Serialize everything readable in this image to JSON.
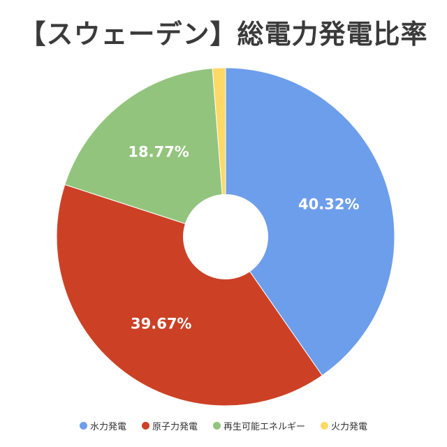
{
  "chart_data": {
    "type": "pie",
    "title": "【スウェーデン】総電力発電比率",
    "donut": true,
    "legend_position": "bottom",
    "slices": [
      {
        "name": "水力発電",
        "value": 40.32,
        "label": "40.32%",
        "color": "#6d9eeb"
      },
      {
        "name": "原子力発電",
        "value": 39.67,
        "label": "39.67%",
        "color": "#cc4125"
      },
      {
        "name": "再生可能エネルギー",
        "value": 18.77,
        "label": "18.77%",
        "color": "#93c47d"
      },
      {
        "name": "火力発電",
        "value": 1.24,
        "label": "",
        "color": "#ffd966"
      }
    ]
  }
}
